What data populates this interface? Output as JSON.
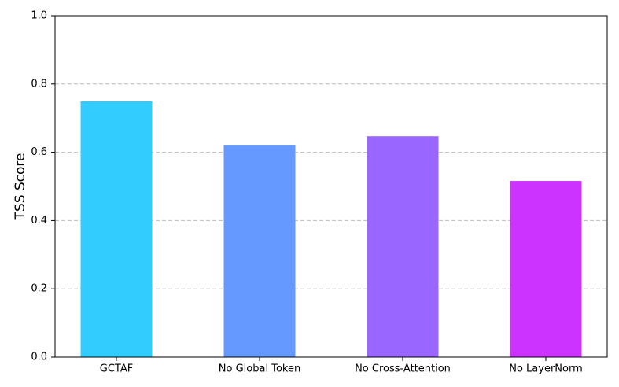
{
  "chart_data": {
    "type": "bar",
    "y_label": "TSS Score",
    "categories": [
      "GCTAF",
      "No Global Token",
      "No Cross-Attention",
      "No LayerNorm"
    ],
    "values": [
      0.749,
      0.622,
      0.647,
      0.516
    ],
    "colors": [
      "#33ccff",
      "#6699ff",
      "#9966ff",
      "#cc33ff"
    ],
    "ylim": [
      0,
      1.0
    ],
    "yticks": [
      {
        "value": 0,
        "label": "0.0"
      },
      0.2,
      0.4,
      0.6,
      0.8,
      {
        "value": 1.0,
        "label": "1.0"
      }
    ],
    "grid": true
  }
}
